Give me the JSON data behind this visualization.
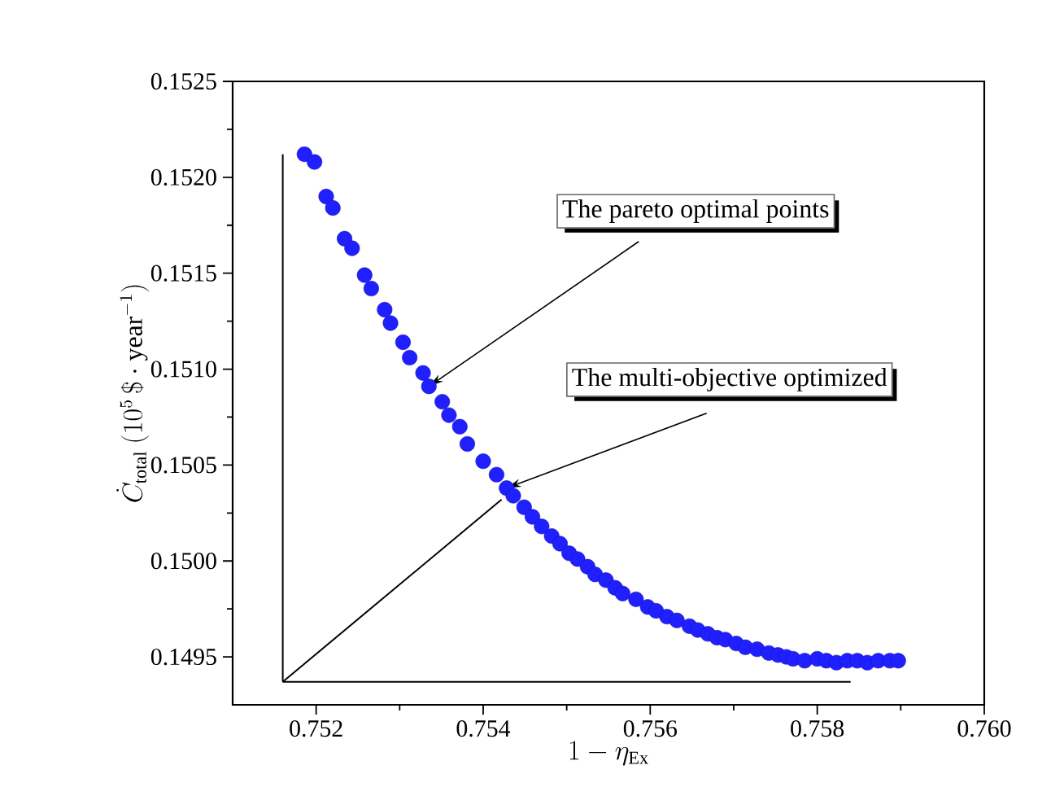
{
  "chart_data": {
    "type": "scatter",
    "xlabel": "1-\\eta_{\\mathrm{Ex}}",
    "ylabel": "\\dot{C}_{\\mathrm{total}}\\ (10^{5}\\,\\$\\cdot \\mathrm{year}^{-1})",
    "xlim": [
      0.751,
      0.76
    ],
    "ylim": [
      0.14925,
      0.1525
    ],
    "xticks": [
      {
        "value": 0.752,
        "label": "0.752"
      },
      {
        "value": 0.754,
        "label": "0.754"
      },
      {
        "value": 0.756,
        "label": "0.756"
      },
      {
        "value": 0.758,
        "label": "0.758"
      },
      {
        "value": 0.76,
        "label": "0.760"
      }
    ],
    "yticks": [
      {
        "value": 0.1495,
        "label": "0.1495"
      },
      {
        "value": 0.15,
        "label": "0.1500"
      },
      {
        "value": 0.1505,
        "label": "0.1505"
      },
      {
        "value": 0.151,
        "label": "0.1510"
      },
      {
        "value": 0.1515,
        "label": "0.1515"
      },
      {
        "value": 0.152,
        "label": "0.1520"
      },
      {
        "value": 0.1525,
        "label": "0.1525"
      }
    ],
    "grid": false,
    "annotations": [
      {
        "text": "The pareto optimal points",
        "x": 0.75335,
        "y": 0.15091
      },
      {
        "text": "The multi-objective optimized",
        "x": 0.75428,
        "y": 0.15038
      }
    ],
    "series": [
      {
        "type": "line",
        "color": "#000000",
        "marker": "none",
        "x": [
          0.7516,
          0.7516
        ],
        "values": [
          0.15212,
          0.14937
        ]
      },
      {
        "type": "line",
        "color": "#000000",
        "marker": "none",
        "x": [
          0.7516,
          0.7584
        ],
        "values": [
          0.14937,
          0.14937
        ]
      },
      {
        "type": "line",
        "color": "#000000",
        "marker": "none",
        "x": [
          0.7516,
          0.75422
        ],
        "values": [
          0.14937,
          0.15032
        ]
      },
      {
        "color": "#1f1fff",
        "marker": "circle",
        "x": [
          0.75186,
          0.75198,
          0.75212,
          0.7522,
          0.75234,
          0.75243,
          0.75258,
          0.75266,
          0.75282,
          0.75289,
          0.75304,
          0.75312,
          0.75328,
          0.75335,
          0.75351,
          0.75359,
          0.75372,
          0.75381,
          0.754,
          0.75416,
          0.75428,
          0.75436,
          0.75449,
          0.75459,
          0.7547,
          0.75482,
          0.75492,
          0.75503,
          0.75513,
          0.75525,
          0.75534,
          0.75547,
          0.75558,
          0.75567,
          0.75583,
          0.75597,
          0.75607,
          0.7562,
          0.75632,
          0.75647,
          0.75657,
          0.75669,
          0.7568,
          0.7569,
          0.75703,
          0.75714,
          0.75728,
          0.75742,
          0.75753,
          0.75763,
          0.75771,
          0.75785,
          0.758,
          0.75811,
          0.75823,
          0.75836,
          0.75848,
          0.7586,
          0.75873,
          0.75887,
          0.75897
        ],
        "values": [
          0.15212,
          0.15208,
          0.1519,
          0.15184,
          0.15168,
          0.15163,
          0.15149,
          0.15142,
          0.15131,
          0.15124,
          0.15114,
          0.15106,
          0.15098,
          0.15091,
          0.15083,
          0.15076,
          0.1507,
          0.15061,
          0.15052,
          0.15045,
          0.15038,
          0.15034,
          0.15028,
          0.15023,
          0.15018,
          0.15013,
          0.15009,
          0.15004,
          0.15001,
          0.14997,
          0.14993,
          0.1499,
          0.14986,
          0.14983,
          0.1498,
          0.14976,
          0.14974,
          0.14971,
          0.14969,
          0.14966,
          0.14964,
          0.14962,
          0.1496,
          0.14959,
          0.14957,
          0.14955,
          0.14954,
          0.14952,
          0.14951,
          0.1495,
          0.14949,
          0.14948,
          0.14949,
          0.14948,
          0.14947,
          0.14948,
          0.14948,
          0.14947,
          0.14948,
          0.14948,
          0.14948
        ]
      }
    ]
  }
}
